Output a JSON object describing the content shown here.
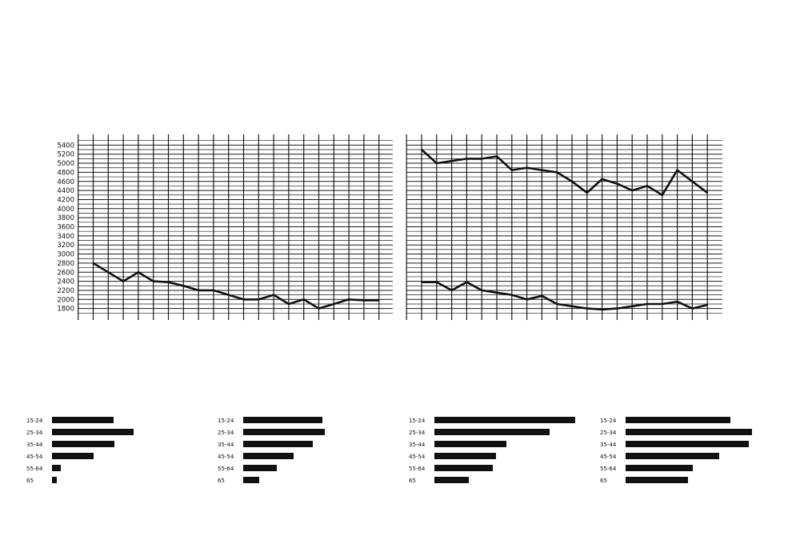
{
  "colors": {
    "ink": "#111111",
    "grid": "#1a1a1a",
    "background": "#ffffff"
  },
  "chart_data": [
    {
      "type": "line",
      "x": [
        1,
        2,
        3,
        4,
        5,
        6,
        7,
        8,
        9,
        10,
        11,
        12,
        13,
        14,
        15,
        16,
        17,
        18,
        19,
        20
      ],
      "ylim": [
        1600,
        5600
      ],
      "yticks": [
        1800,
        2000,
        2200,
        2400,
        2600,
        2800,
        3000,
        3200,
        3400,
        3600,
        3800,
        4000,
        4200,
        4400,
        4600,
        4800,
        5000,
        5200,
        5400
      ],
      "ytick_labels": [
        "1800",
        "2000",
        "2200",
        "2400",
        "2600",
        "2800",
        "3000",
        "3200",
        "3400",
        "3600",
        "3800",
        "4000",
        "4200",
        "4400",
        "4600",
        "4800",
        "5000",
        "5200",
        "5400"
      ],
      "grid": true,
      "series": [
        {
          "values": [
            2800,
            2600,
            2400,
            2600,
            2400,
            2380,
            2300,
            2200,
            2200,
            2100,
            2000,
            2000,
            2100,
            1900,
            2000,
            1800,
            1900,
            2000,
            1980,
            1980
          ]
        }
      ]
    },
    {
      "type": "line",
      "x": [
        1,
        2,
        3,
        4,
        5,
        6,
        7,
        8,
        9,
        10,
        11,
        12,
        13,
        14,
        15,
        16,
        17,
        18,
        19,
        20
      ],
      "ylim": [
        1600,
        5600
      ],
      "grid": true,
      "series": [
        {
          "values": [
            5300,
            5000,
            5050,
            5100,
            5100,
            5150,
            4850,
            4900,
            4850,
            4800,
            4600,
            4350,
            4650,
            4550,
            4400,
            4500,
            4300,
            4850,
            4600,
            4350
          ]
        },
        {
          "values": [
            2380,
            2380,
            2200,
            2380,
            2200,
            2150,
            2100,
            2000,
            2080,
            1900,
            1850,
            1800,
            1780,
            1800,
            1850,
            1900,
            1900,
            1950,
            1800,
            1880
          ]
        }
      ]
    },
    {
      "type": "bar",
      "orientation": "horizontal",
      "categories": [
        "15-24",
        "25-34",
        "35-44",
        "45-54",
        "55-64",
        "65"
      ],
      "values": [
        77,
        102,
        78,
        52,
        11,
        6
      ]
    },
    {
      "type": "bar",
      "orientation": "horizontal",
      "categories": [
        "15-24",
        "25-34",
        "35-44",
        "45-54",
        "55-64",
        "65"
      ],
      "values": [
        99,
        102,
        87,
        63,
        42,
        20
      ]
    },
    {
      "type": "bar",
      "orientation": "horizontal",
      "categories": [
        "15-24",
        "25-34",
        "35-44",
        "45-54",
        "55-64",
        "65"
      ],
      "values": [
        176,
        144,
        90,
        77,
        73,
        43
      ]
    },
    {
      "type": "bar",
      "orientation": "horizontal",
      "categories": [
        "15-24",
        "25-34",
        "35-44",
        "45-54",
        "55-64",
        "65"
      ],
      "values": [
        131,
        158,
        154,
        117,
        84,
        78
      ]
    }
  ]
}
